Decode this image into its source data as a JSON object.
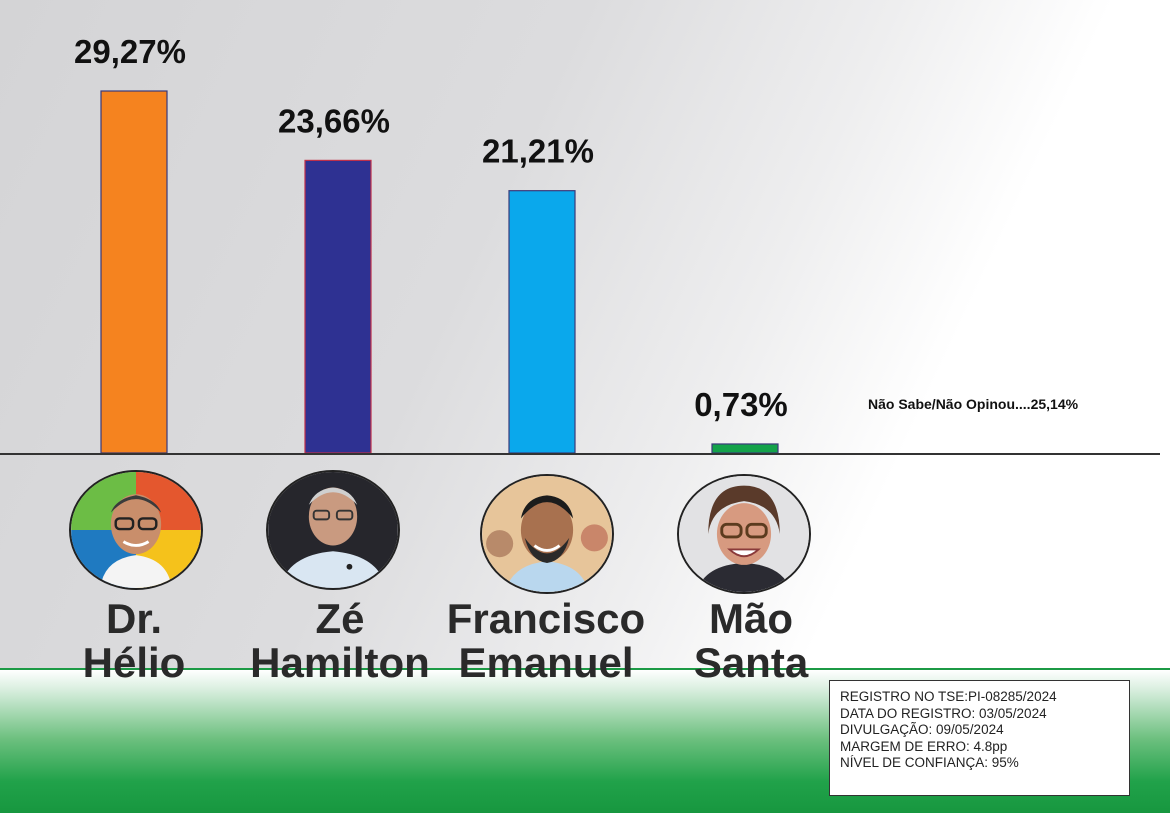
{
  "chart_data": {
    "type": "bar",
    "categories": [
      "Dr. Hélio",
      "Zé Hamilton",
      "Francisco Emanuel",
      "Mão Santa"
    ],
    "values": [
      29.27,
      23.66,
      21.21,
      0.73
    ],
    "value_labels": [
      "29,27%",
      "23,66%",
      "21,21%",
      "0,73%"
    ],
    "colors": [
      "#f5831f",
      "#2e3192",
      "#0aa8ec",
      "#13a24a"
    ],
    "ylim": [
      0,
      29.27
    ],
    "grid": false,
    "legend": "none",
    "annotation": "Não Sabe/Não Opinou....25,14%"
  },
  "candidates": [
    {
      "first": "Dr.",
      "last": "Hélio"
    },
    {
      "first": "Zé",
      "last": "Hamilton"
    },
    {
      "first": "Francisco",
      "last": "Emanuel"
    },
    {
      "first": "Mão",
      "last": "Santa"
    }
  ],
  "info": {
    "registro": "REGISTRO NO TSE:PI-08285/2024",
    "data_registro": "DATA DO REGISTRO: 03/05/2024",
    "divulgacao": "DIVULGAÇÃO: 09/05/2024",
    "margem": "MARGEM DE ERRO: 4.8pp",
    "confianca": "NÍVEL DE CONFIANÇA: 95%"
  },
  "icons": [
    "candidate-photo-icon"
  ]
}
